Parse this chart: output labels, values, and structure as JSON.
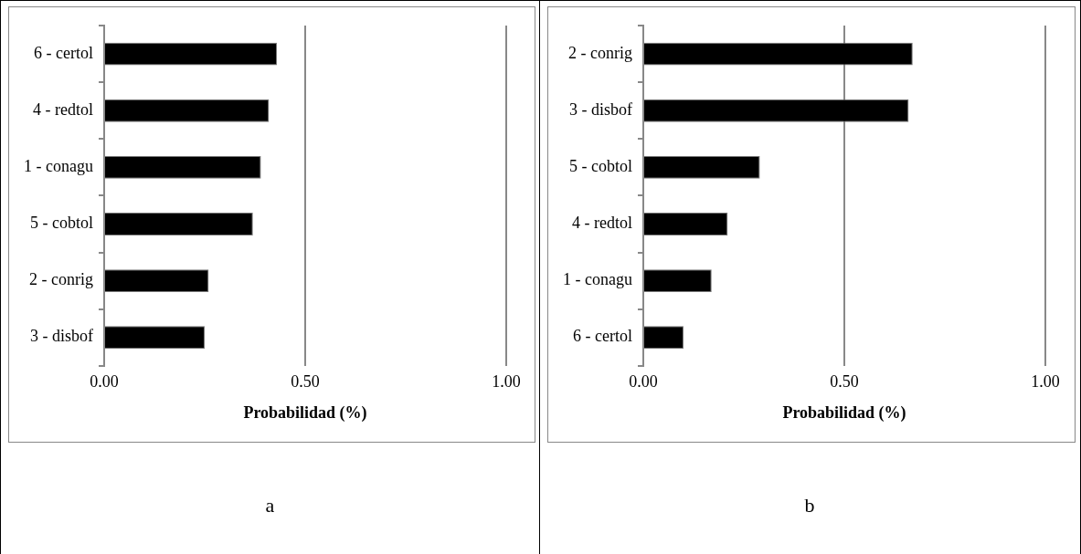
{
  "chart_data": [
    {
      "type": "bar",
      "orientation": "horizontal",
      "categories": [
        "6 - certol",
        "4 - redtol",
        "1 - conagu",
        "5 - cobtol",
        "2 - conrig",
        "3 - disbof"
      ],
      "values": [
        0.43,
        0.41,
        0.39,
        0.37,
        0.26,
        0.25
      ],
      "color": "#000000",
      "xlim": [
        0,
        1
      ],
      "xticks": [
        {
          "value": 0,
          "label": "0.00"
        },
        {
          "value": 0.5,
          "label": "0.50"
        },
        {
          "value": 1,
          "label": "1.00"
        }
      ],
      "xlabel": "Probabilidad (%)",
      "grid": "x",
      "annotations": [
        "a"
      ]
    },
    {
      "type": "bar",
      "orientation": "horizontal",
      "categories": [
        "2 - conrig",
        "3 - disbof",
        "5 - cobtol",
        "4 - redtol",
        "1 - conagu",
        "6 - certol"
      ],
      "values": [
        0.67,
        0.66,
        0.29,
        0.21,
        0.17,
        0.1
      ],
      "color": "#000000",
      "xlim": [
        0,
        1
      ],
      "xticks": [
        {
          "value": 0,
          "label": "0.00"
        },
        {
          "value": 0.5,
          "label": "0.50"
        },
        {
          "value": 1,
          "label": "1.00"
        }
      ],
      "xlabel": "Probabilidad (%)",
      "grid": "x",
      "annotations": [
        "b"
      ]
    }
  ]
}
